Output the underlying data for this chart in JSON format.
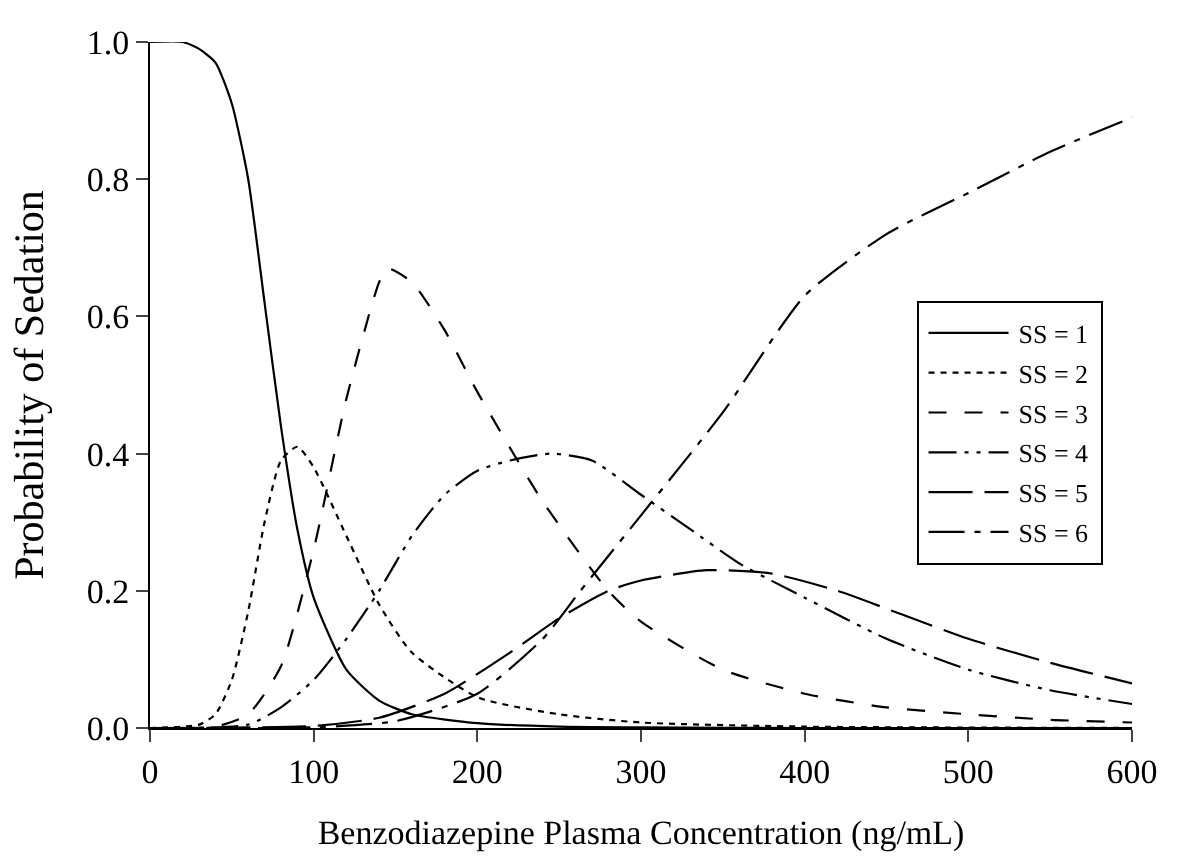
{
  "chart_data": {
    "type": "line",
    "xlabel": "Benzodiazepine Plasma Concentration (ng/mL)",
    "ylabel": "Probability of Sedation",
    "xlim": [
      0,
      600
    ],
    "xticks": [
      0,
      100,
      200,
      300,
      400,
      500,
      600
    ],
    "ylim": [
      0,
      1
    ],
    "yticks": [
      {
        "value": 0,
        "label": "0.0"
      },
      {
        "value": 0.2,
        "label": "0.2"
      },
      {
        "value": 0.4,
        "label": "0.4"
      },
      {
        "value": 0.6,
        "label": "0.6"
      },
      {
        "value": 0.8,
        "label": "0.8"
      },
      {
        "value": 1,
        "label": "1.0"
      }
    ],
    "legend": "right",
    "marker": "none",
    "series": [
      {
        "name": "SS = 1",
        "color": "#000000",
        "line_style": "solid",
        "x": [
          0,
          20,
          30,
          40,
          50,
          60,
          70,
          80,
          90,
          100,
          120,
          140,
          160,
          200,
          250,
          300,
          400,
          600
        ],
        "values": [
          1.0,
          1.0,
          0.99,
          0.97,
          0.91,
          0.8,
          0.62,
          0.44,
          0.29,
          0.19,
          0.085,
          0.04,
          0.02,
          0.007,
          0.002,
          0.001,
          0,
          0
        ]
      },
      {
        "name": "SS = 2",
        "color": "#000000",
        "line_style": "dotted",
        "x": [
          0,
          30,
          40,
          50,
          60,
          70,
          80,
          90,
          100,
          120,
          140,
          160,
          200,
          250,
          300,
          400,
          600
        ],
        "values": [
          0,
          0.005,
          0.02,
          0.07,
          0.17,
          0.3,
          0.39,
          0.41,
          0.38,
          0.28,
          0.18,
          0.11,
          0.045,
          0.02,
          0.008,
          0.002,
          0
        ]
      },
      {
        "name": "SS = 3",
        "color": "#000000",
        "line_style": "dashed",
        "x": [
          0,
          40,
          60,
          80,
          100,
          120,
          140,
          145,
          160,
          180,
          200,
          240,
          280,
          300,
          350,
          400,
          450,
          500,
          550,
          600
        ],
        "values": [
          0,
          0.002,
          0.02,
          0.09,
          0.26,
          0.48,
          0.65,
          0.67,
          0.65,
          0.58,
          0.49,
          0.33,
          0.2,
          0.155,
          0.085,
          0.05,
          0.03,
          0.02,
          0.012,
          0.008
        ]
      },
      {
        "name": "SS = 4",
        "color": "#000000",
        "line_style": "dashdotdot",
        "x": [
          0,
          60,
          80,
          100,
          120,
          140,
          160,
          180,
          200,
          220,
          245,
          270,
          300,
          330,
          360,
          400,
          450,
          500,
          550,
          600
        ],
        "values": [
          0,
          0.005,
          0.03,
          0.07,
          0.13,
          0.2,
          0.28,
          0.34,
          0.375,
          0.39,
          0.4,
          0.39,
          0.34,
          0.29,
          0.24,
          0.19,
          0.13,
          0.085,
          0.055,
          0.035
        ]
      },
      {
        "name": "SS = 5",
        "color": "#000000",
        "line_style": "longdash",
        "x": [
          0,
          100,
          140,
          180,
          220,
          250,
          280,
          300,
          340,
          380,
          420,
          460,
          500,
          550,
          600
        ],
        "values": [
          0,
          0.003,
          0.015,
          0.05,
          0.11,
          0.16,
          0.2,
          0.215,
          0.23,
          0.225,
          0.2,
          0.165,
          0.13,
          0.095,
          0.065
        ]
      },
      {
        "name": "SS = 6",
        "color": "#000000",
        "line_style": "dashdot",
        "x": [
          0,
          100,
          150,
          200,
          240,
          263,
          300,
          350,
          400,
          450,
          500,
          550,
          600
        ],
        "values": [
          0,
          0.001,
          0.01,
          0.05,
          0.13,
          0.2,
          0.31,
          0.46,
          0.63,
          0.72,
          0.78,
          0.84,
          0.89
        ]
      }
    ]
  }
}
